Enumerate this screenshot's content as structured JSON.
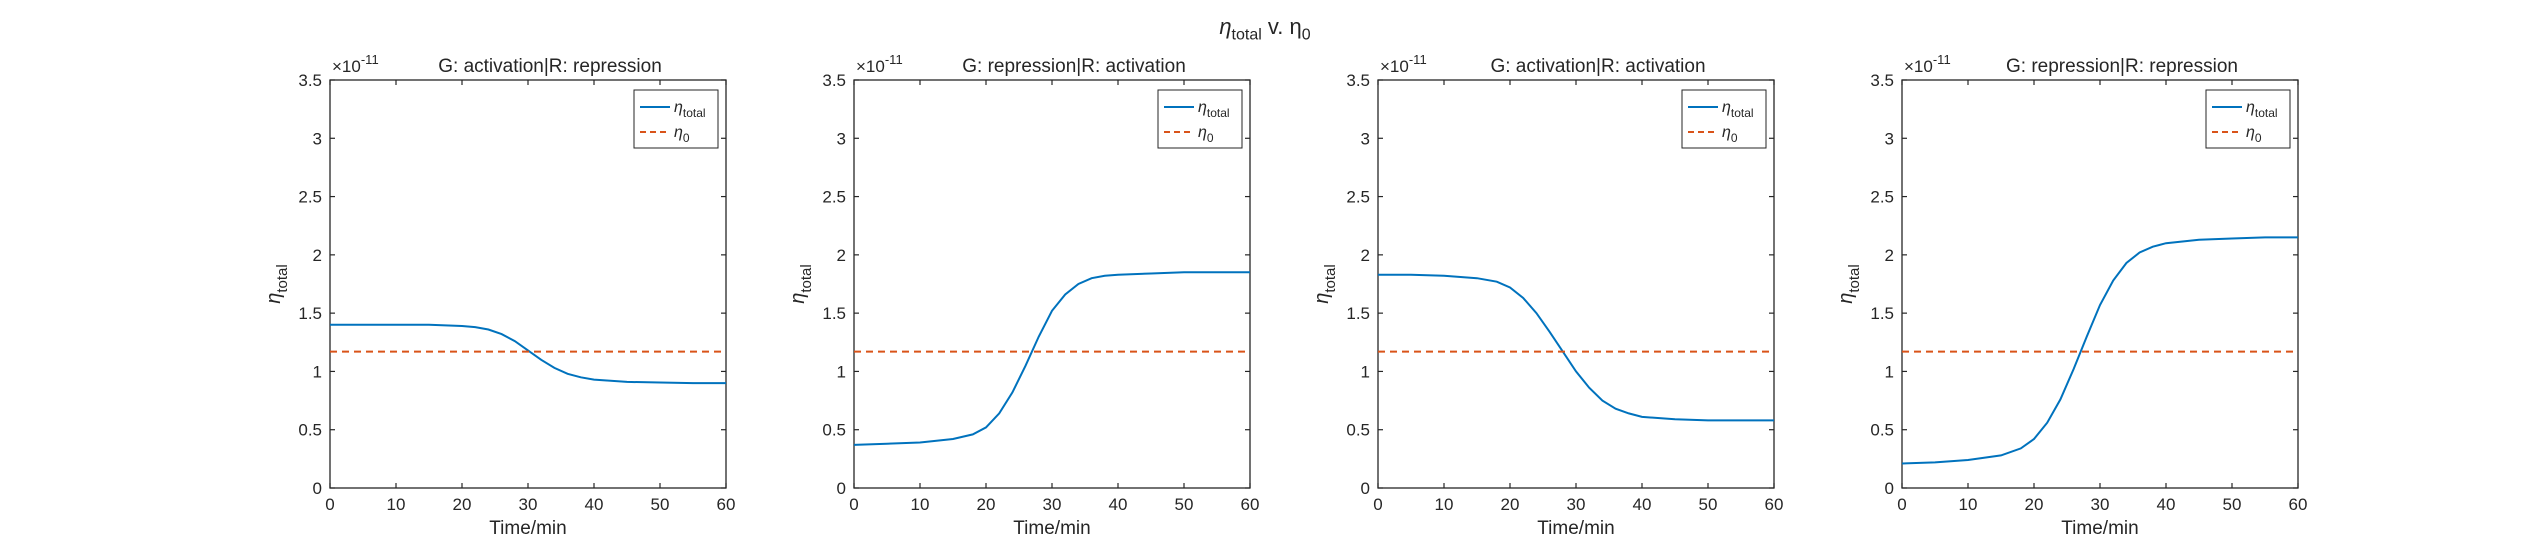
{
  "figure": {
    "suptitle_main": "η",
    "suptitle_sub": "total",
    "suptitle_mid": " v. η",
    "suptitle_sub2": "0"
  },
  "chart_data": [
    {
      "type": "line",
      "title": "G: activation|R: repression",
      "exponent_label": "×10",
      "exponent_power": "-11",
      "xlabel": "Time/min",
      "ylabel_main": "η",
      "ylabel_sub": "total",
      "xlim": [
        0,
        60
      ],
      "ylim": [
        0,
        3.5
      ],
      "xticks": [
        0,
        10,
        20,
        30,
        40,
        50,
        60
      ],
      "yticks": [
        0,
        0.5,
        1,
        1.5,
        2,
        2.5,
        3,
        3.5
      ],
      "ytick_labels": [
        "0",
        "0.5",
        "1",
        "1.5",
        "2",
        "2.5",
        "3",
        "3.5"
      ],
      "legend_position": "top-right",
      "series": [
        {
          "name": "η_total",
          "legend_main": "η",
          "legend_sub": "total",
          "style": "solid",
          "color": "#0072BD",
          "x": [
            0,
            5,
            10,
            15,
            20,
            22,
            24,
            26,
            28,
            30,
            32,
            34,
            36,
            38,
            40,
            45,
            50,
            55,
            60
          ],
          "y": [
            1.4,
            1.4,
            1.4,
            1.4,
            1.39,
            1.38,
            1.36,
            1.32,
            1.26,
            1.18,
            1.1,
            1.03,
            0.98,
            0.95,
            0.93,
            0.91,
            0.905,
            0.9,
            0.9
          ]
        },
        {
          "name": "η_0",
          "legend_main": "η",
          "legend_sub": "0",
          "style": "dashed",
          "color": "#D95319",
          "x": [
            0,
            60
          ],
          "y": [
            1.17,
            1.17
          ]
        }
      ]
    },
    {
      "type": "line",
      "title": "G: repression|R: activation",
      "exponent_label": "×10",
      "exponent_power": "-11",
      "xlabel": "Time/min",
      "ylabel_main": "η",
      "ylabel_sub": "total",
      "xlim": [
        0,
        60
      ],
      "ylim": [
        0,
        3.5
      ],
      "xticks": [
        0,
        10,
        20,
        30,
        40,
        50,
        60
      ],
      "yticks": [
        0,
        0.5,
        1,
        1.5,
        2,
        2.5,
        3,
        3.5
      ],
      "ytick_labels": [
        "0",
        "0.5",
        "1",
        "1.5",
        "2",
        "2.5",
        "3",
        "3.5"
      ],
      "legend_position": "top-right",
      "series": [
        {
          "name": "η_total",
          "legend_main": "η",
          "legend_sub": "total",
          "style": "solid",
          "color": "#0072BD",
          "x": [
            0,
            5,
            10,
            15,
            18,
            20,
            22,
            24,
            26,
            28,
            30,
            32,
            34,
            36,
            38,
            40,
            45,
            50,
            55,
            60
          ],
          "y": [
            0.37,
            0.38,
            0.39,
            0.42,
            0.46,
            0.52,
            0.64,
            0.82,
            1.05,
            1.3,
            1.52,
            1.66,
            1.75,
            1.8,
            1.82,
            1.83,
            1.84,
            1.85,
            1.85,
            1.85
          ]
        },
        {
          "name": "η_0",
          "legend_main": "η",
          "legend_sub": "0",
          "style": "dashed",
          "color": "#D95319",
          "x": [
            0,
            60
          ],
          "y": [
            1.17,
            1.17
          ]
        }
      ]
    },
    {
      "type": "line",
      "title": "G: activation|R: activation",
      "exponent_label": "×10",
      "exponent_power": "-11",
      "xlabel": "Time/min",
      "ylabel_main": "η",
      "ylabel_sub": "total",
      "xlim": [
        0,
        60
      ],
      "ylim": [
        0,
        3.5
      ],
      "xticks": [
        0,
        10,
        20,
        30,
        40,
        50,
        60
      ],
      "yticks": [
        0,
        0.5,
        1,
        1.5,
        2,
        2.5,
        3,
        3.5
      ],
      "ytick_labels": [
        "0",
        "0.5",
        "1",
        "1.5",
        "2",
        "2.5",
        "3",
        "3.5"
      ],
      "legend_position": "top-right",
      "series": [
        {
          "name": "η_total",
          "legend_main": "η",
          "legend_sub": "total",
          "style": "solid",
          "color": "#0072BD",
          "x": [
            0,
            5,
            10,
            15,
            18,
            20,
            22,
            24,
            26,
            28,
            30,
            32,
            34,
            36,
            38,
            40,
            45,
            50,
            55,
            60
          ],
          "y": [
            1.83,
            1.83,
            1.82,
            1.8,
            1.77,
            1.72,
            1.63,
            1.5,
            1.34,
            1.17,
            1.0,
            0.86,
            0.75,
            0.68,
            0.64,
            0.61,
            0.59,
            0.58,
            0.58,
            0.58
          ]
        },
        {
          "name": "η_0",
          "legend_main": "η",
          "legend_sub": "0",
          "style": "dashed",
          "color": "#D95319",
          "x": [
            0,
            60
          ],
          "y": [
            1.17,
            1.17
          ]
        }
      ]
    },
    {
      "type": "line",
      "title": "G: repression|R: repression",
      "exponent_label": "×10",
      "exponent_power": "-11",
      "xlabel": "Time/min",
      "ylabel_main": "η",
      "ylabel_sub": "total",
      "xlim": [
        0,
        60
      ],
      "ylim": [
        0,
        3.5
      ],
      "xticks": [
        0,
        10,
        20,
        30,
        40,
        50,
        60
      ],
      "yticks": [
        0,
        0.5,
        1,
        1.5,
        2,
        2.5,
        3,
        3.5
      ],
      "ytick_labels": [
        "0",
        "0.5",
        "1",
        "1.5",
        "2",
        "2.5",
        "3",
        "3.5"
      ],
      "legend_position": "top-right",
      "series": [
        {
          "name": "η_total",
          "legend_main": "η",
          "legend_sub": "total",
          "style": "solid",
          "color": "#0072BD",
          "x": [
            0,
            5,
            10,
            15,
            18,
            20,
            22,
            24,
            26,
            28,
            30,
            32,
            34,
            36,
            38,
            40,
            45,
            50,
            55,
            60
          ],
          "y": [
            0.21,
            0.22,
            0.24,
            0.28,
            0.34,
            0.42,
            0.56,
            0.76,
            1.02,
            1.3,
            1.57,
            1.78,
            1.93,
            2.02,
            2.07,
            2.1,
            2.13,
            2.14,
            2.15,
            2.15
          ]
        },
        {
          "name": "η_0",
          "legend_main": "η",
          "legend_sub": "0",
          "style": "dashed",
          "color": "#D95319",
          "x": [
            0,
            60
          ],
          "y": [
            1.17,
            1.17
          ]
        }
      ]
    }
  ]
}
